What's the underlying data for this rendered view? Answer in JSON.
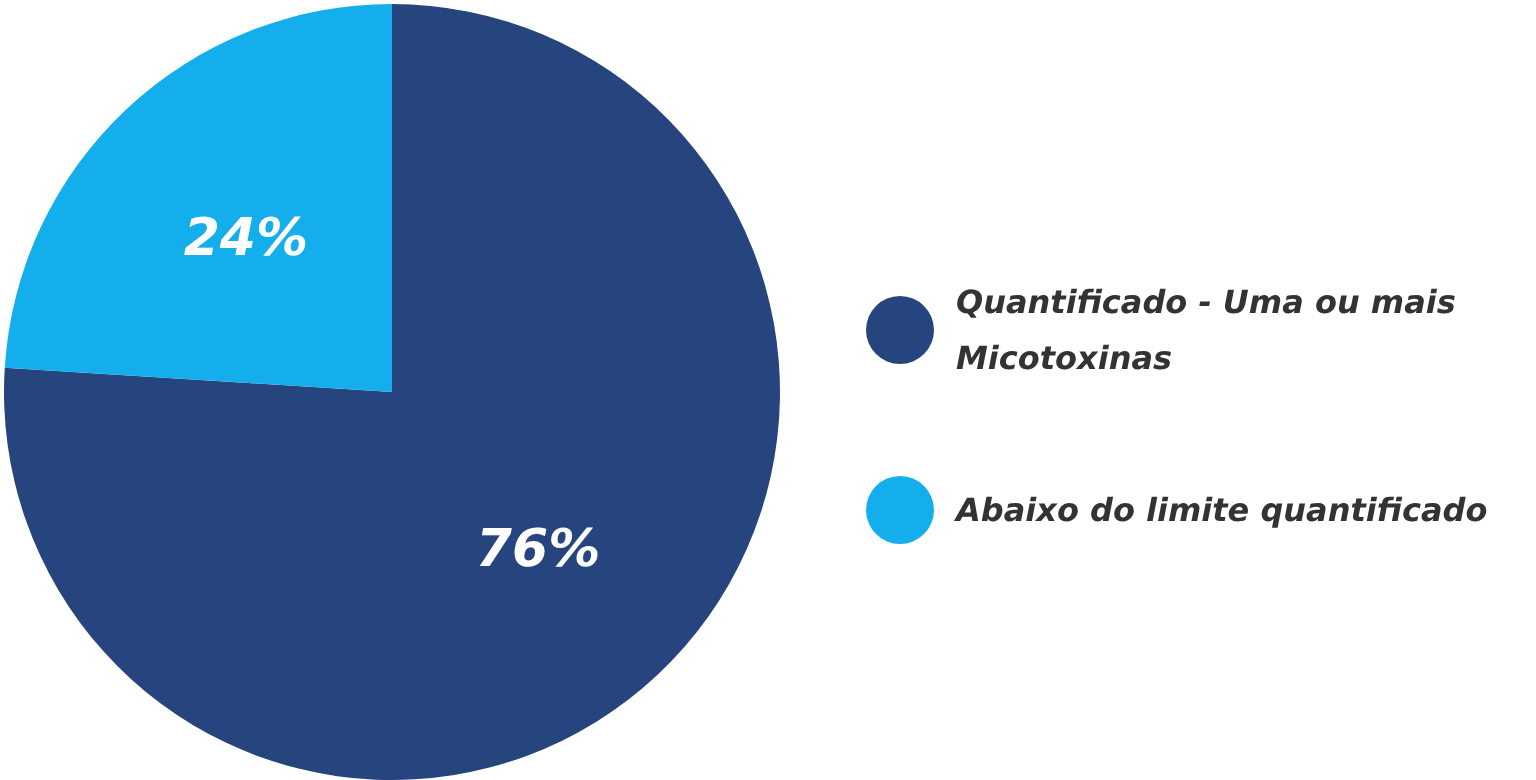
{
  "chart_data": {
    "type": "pie",
    "categories": [
      "Quantificado - Uma ou mais Micotoxinas",
      "Abaixo do limite quantificado"
    ],
    "values": [
      76,
      24
    ],
    "colors": [
      "#26457f",
      "#14aeec"
    ],
    "value_labels": [
      "76%",
      "24%"
    ],
    "legend": "right"
  }
}
